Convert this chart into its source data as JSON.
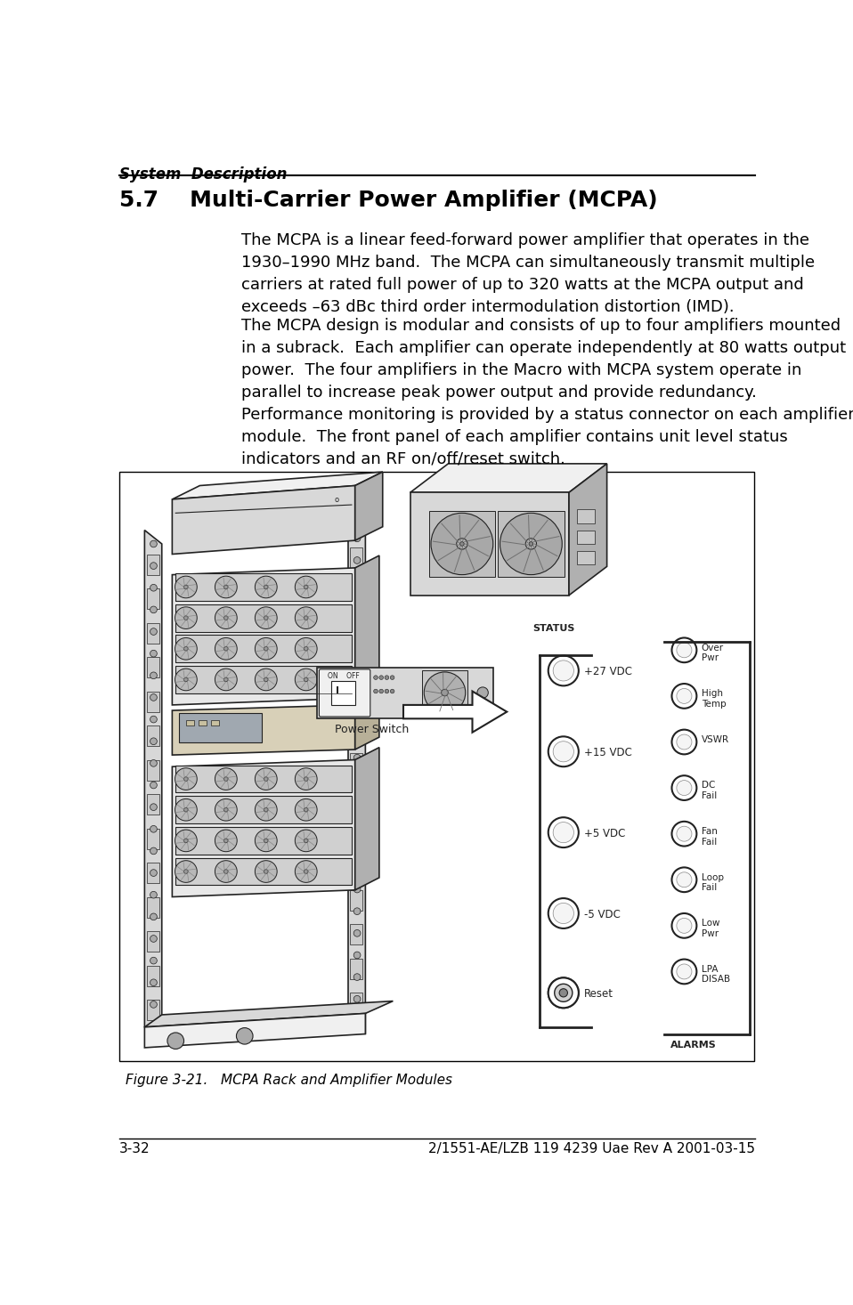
{
  "page_title": "System  Description",
  "section_number": "5.7",
  "section_title": "Multi-Carrier Power Amplifier (MCPA)",
  "paragraph1": "The MCPA is a linear feed-forward power amplifier that operates in the\n1930–1990 MHz band.  The MCPA can simultaneously transmit multiple\ncarriers at rated full power of up to 320 watts at the MCPA output and\nexceeds –63 dBc third order intermodulation distortion (IMD).",
  "paragraph2": "The MCPA design is modular and consists of up to four amplifiers mounted\nin a subrack.  Each amplifier can operate independently at 80 watts output\npower.  The four amplifiers in the Macro with MCPA system operate in\nparallel to increase peak power output and provide redundancy.",
  "paragraph3": "Performance monitoring is provided by a status connector on each amplifier\nmodule.  The front panel of each amplifier contains unit level status\nindicators and an RF on/off/reset switch.",
  "figure_caption": "Figure 3-21.   MCPA Rack and Amplifier Modules",
  "footer_left": "3-32",
  "footer_right": "2/1551-AE/LZB 119 4239 Uae Rev A 2001-03-15",
  "bg_color": "#ffffff",
  "text_color": "#000000"
}
